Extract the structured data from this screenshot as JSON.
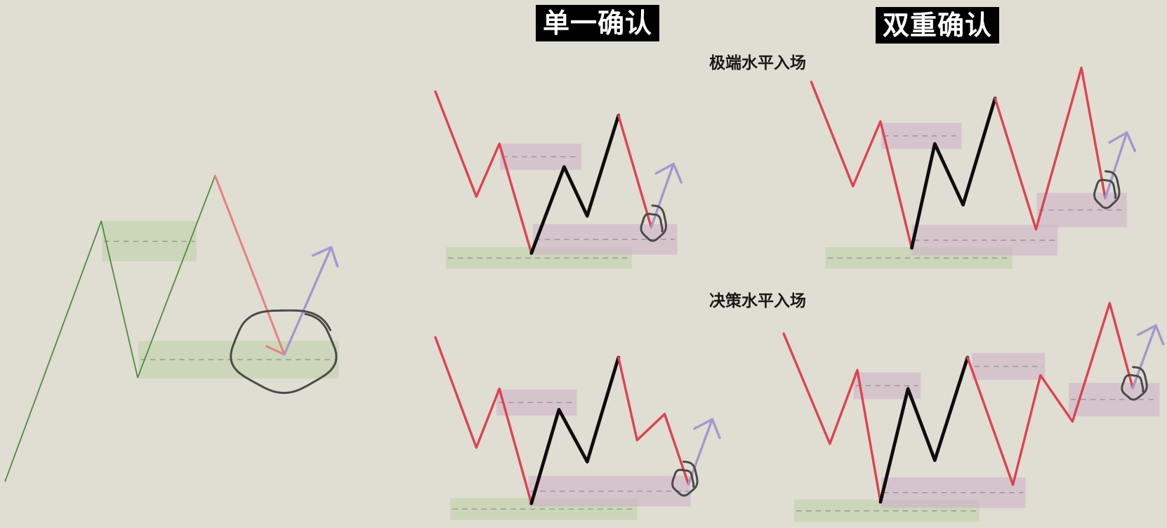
{
  "titles": {
    "single_confirmation": "单一确认",
    "double_confirmation": "双重确认"
  },
  "row_labels": {
    "extreme_level_entry": "极端水平入场",
    "decision_level_entry": "决策水平入场"
  },
  "colors": {
    "background": "#e0ddd3",
    "red_line": "#dc4351",
    "red_line_faded": "#e7807f",
    "green_line": "#4f8d3e",
    "black_line": "#0d0d0d",
    "purple_arrow": "#a597cd",
    "green_zone": "#bcd0a4",
    "purple_zone": "#ceaec8",
    "zone_midline": "#8f8f8f",
    "circle_marker": "#4a4a4a",
    "title_box": "#000000",
    "title_text": "#ffffff"
  }
}
